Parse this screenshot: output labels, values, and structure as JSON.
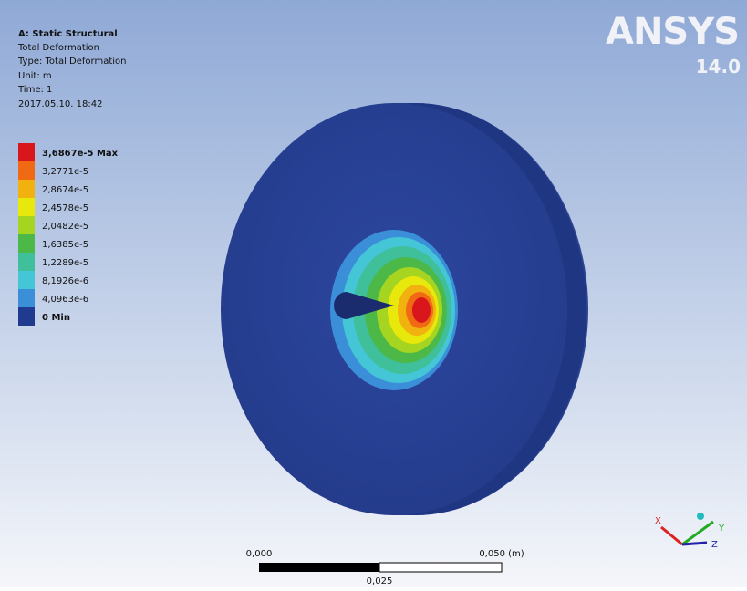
{
  "header": {
    "title": "A: Static Structural",
    "lines": [
      "Total Deformation",
      "Type: Total Deformation",
      "Unit: m",
      "Time: 1",
      "2017.05.10. 18:42"
    ]
  },
  "legend": [
    {
      "label": "3,6867e-5 Max",
      "color": "#d8161b"
    },
    {
      "label": "3,2771e-5",
      "color": "#ef6a12"
    },
    {
      "label": "2,8674e-5",
      "color": "#f1b10e"
    },
    {
      "label": "2,4578e-5",
      "color": "#e8e80c"
    },
    {
      "label": "2,0482e-5",
      "color": "#a6d521"
    },
    {
      "label": "1,6385e-5",
      "color": "#4cb847"
    },
    {
      "label": "1,2289e-5",
      "color": "#3fbf9a"
    },
    {
      "label": "8,1926e-6",
      "color": "#44c6d6"
    },
    {
      "label": "4,0963e-6",
      "color": "#3b8fd9"
    },
    {
      "label": "0 Min",
      "color": "#1f3a8f"
    }
  ],
  "logo": {
    "name": "ANSYS",
    "version": "14.0"
  },
  "scale_bar": {
    "left": "0,000",
    "right": "0,050 (m)",
    "middle": "0,025"
  },
  "triad": {
    "x": "X",
    "y": "Y",
    "z": "Z"
  }
}
